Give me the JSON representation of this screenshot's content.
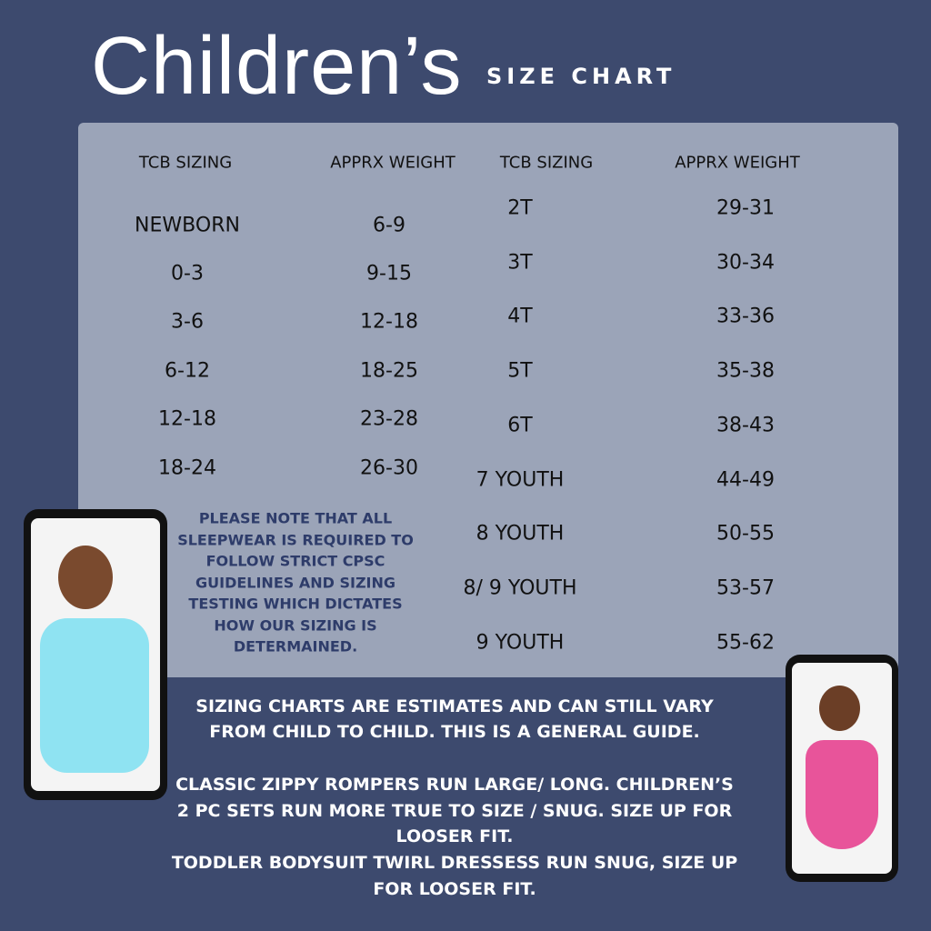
{
  "header": {
    "title": "Children’s",
    "subtitle": "SIZE CHART"
  },
  "left_table": {
    "headers": [
      "TCB SIZING",
      "APPRX WEIGHT"
    ],
    "rows": [
      [
        "NEWBORN",
        "6-9"
      ],
      [
        "0-3",
        "9-15"
      ],
      [
        "3-6",
        "12-18"
      ],
      [
        "6-12",
        "18-25"
      ],
      [
        "12-18",
        "23-28"
      ],
      [
        "18-24",
        "26-30"
      ]
    ]
  },
  "right_table": {
    "headers": [
      "TCB SIZING",
      "APPRX WEIGHT"
    ],
    "rows": [
      [
        "2T",
        "29-31"
      ],
      [
        "3T",
        "30-34"
      ],
      [
        "4T",
        "33-36"
      ],
      [
        "5T",
        "35-38"
      ],
      [
        "6T",
        "38-43"
      ],
      [
        "7 YOUTH",
        "44-49"
      ],
      [
        "8 YOUTH",
        "50-55"
      ],
      [
        "8/ 9 YOUTH",
        "53-57"
      ],
      [
        "9 YOUTH",
        "55-62"
      ]
    ]
  },
  "note": {
    "lines": [
      "PLEASE NOTE THAT ALL",
      "SLEEPWEAR IS REQUIRED TO",
      "FOLLOW STRICT CPSC",
      "GUIDELINES AND SIZING",
      "TESTING WHICH DICTATES",
      "HOW OUR SIZING IS",
      "DETERMAINED."
    ]
  },
  "footer": {
    "lines": [
      "SIZING CHARTS ARE ESTIMATES AND CAN STILL VARY",
      "FROM CHILD TO CHILD. THIS IS A GENERAL GUIDE.",
      "CLASSIC ZIPPY ROMPERS RUN LARGE/ LONG. CHILDREN’S",
      "2 PC SETS RUN MORE TRUE TO SIZE / SNUG. SIZE UP FOR",
      "LOOSER FIT.",
      "TODDLER BODYSUIT TWIRL DRESSESS RUN SNUG, SIZE UP",
      "FOR LOOSER FIT."
    ]
  }
}
